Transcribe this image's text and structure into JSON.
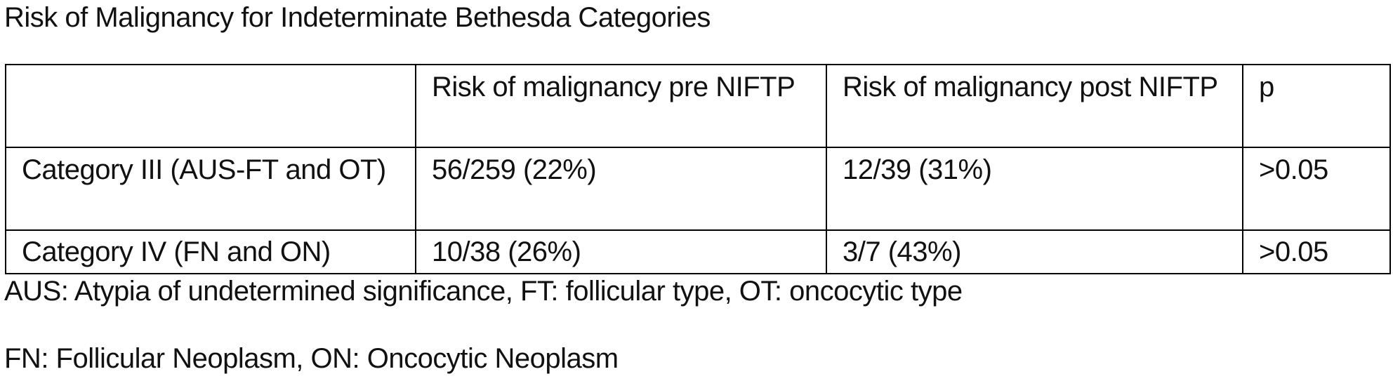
{
  "title": "Risk of Malignancy for Indeterminate Bethesda Categories",
  "table": {
    "headers": [
      "",
      "Risk of malignancy pre NIFTP",
      "Risk of malignancy post NIFTP",
      "p"
    ],
    "rows": [
      [
        "Category III (AUS-FT and OT)",
        "56/259 (22%)",
        "12/39 (31%)",
        ">0.05"
      ],
      [
        "Category IV (FN and ON)",
        "10/38 (26%)",
        "3/7 (43%)",
        ">0.05"
      ]
    ]
  },
  "footnotes": [
    "AUS:  Atypia of undetermined significance, FT: follicular type, OT: oncocytic type",
    "FN: Follicular Neoplasm, ON: Oncocytic Neoplasm"
  ]
}
